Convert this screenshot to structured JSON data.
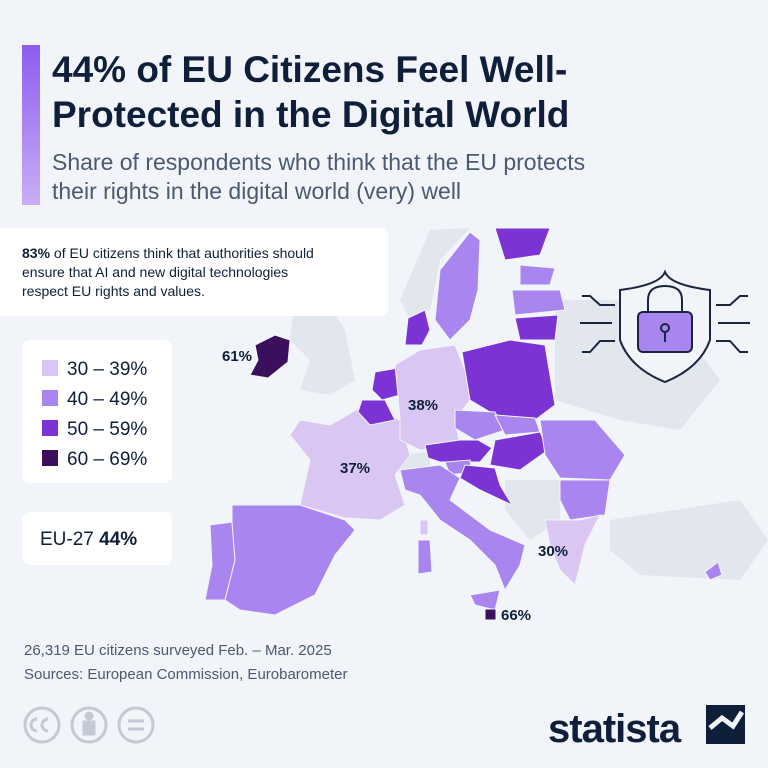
{
  "header": {
    "title_lines": [
      "44% of EU Citizens Feel Well-",
      "Protected in the Digital World"
    ],
    "subtitle_lines": [
      "Share of respondents who think that the EU protects",
      "their rights in the digital world (very) well"
    ]
  },
  "callout": {
    "highlight": "83%",
    "text_lines": [
      "of EU citizens think that authorities should",
      "ensure that AI and new digital technologies",
      "respect EU rights and values."
    ]
  },
  "legend": {
    "items": [
      {
        "label": "30 – 39%",
        "color": "#d9c6f3"
      },
      {
        "label": "40 – 49%",
        "color": "#a986ef"
      },
      {
        "label": "50 – 59%",
        "color": "#7b33d4"
      },
      {
        "label": "60 – 69%",
        "color": "#3a105c"
      }
    ]
  },
  "eu_average": {
    "label": "EU-27",
    "value": "44%"
  },
  "map": {
    "labels": [
      "61%",
      "38%",
      "37%",
      "30%",
      "66%"
    ]
  },
  "footer": {
    "note": "26,319 EU citizens surveyed Feb. – Mar. 2025",
    "source": "Sources: European Commission, Eurobarometer",
    "brand": "statista"
  }
}
